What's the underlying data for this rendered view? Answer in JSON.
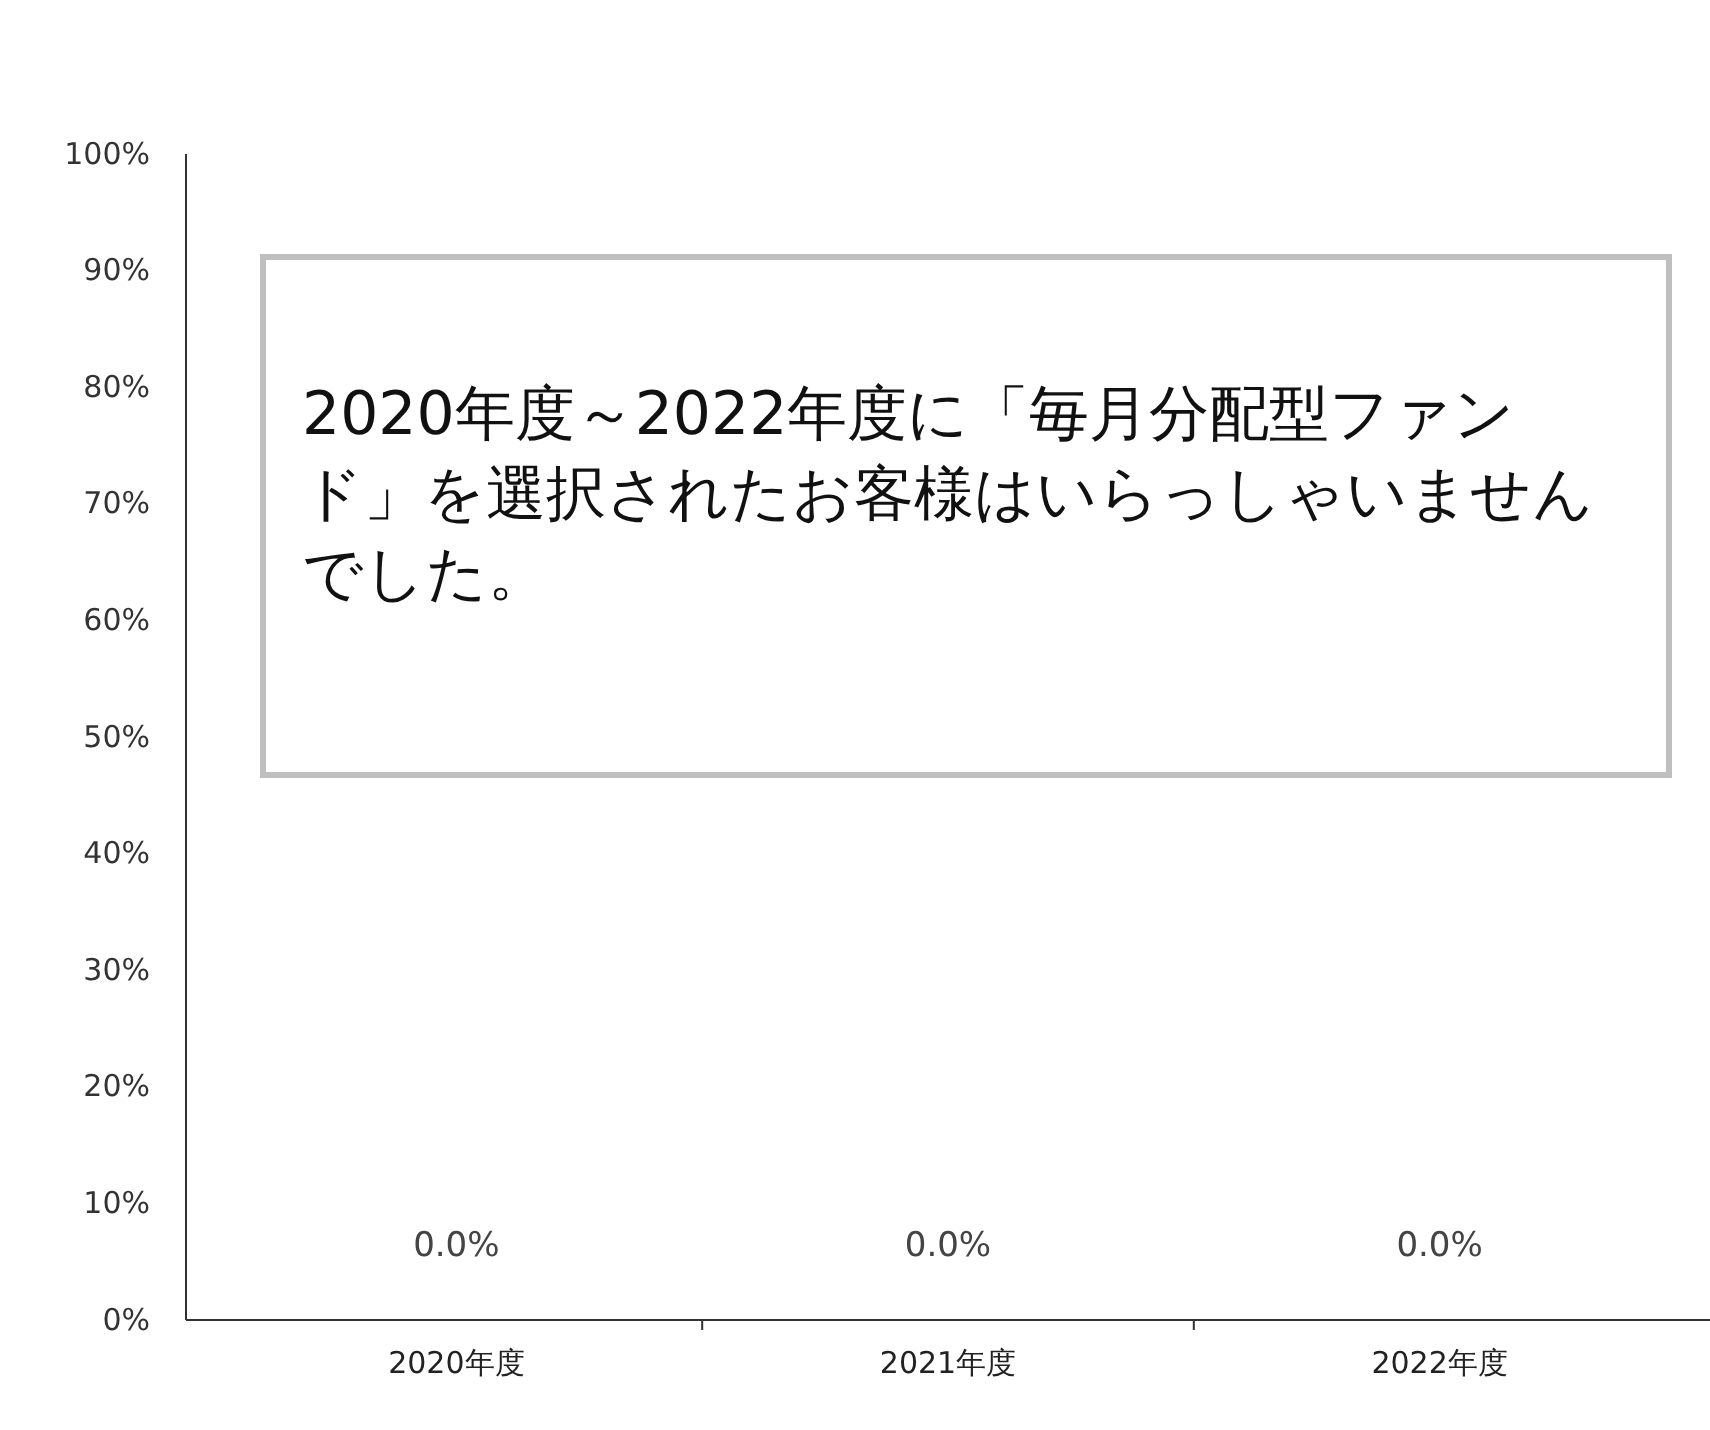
{
  "chart_data": {
    "type": "bar",
    "categories": [
      "2020年度",
      "2021年度",
      "2022年度"
    ],
    "values": [
      0,
      0,
      0
    ],
    "value_labels": [
      "0.0%",
      "0.0%",
      "0.0%"
    ],
    "ylim": [
      0,
      100
    ],
    "yticks": [
      {
        "value": 0,
        "label": "0%"
      },
      {
        "value": 10,
        "label": "10%"
      },
      {
        "value": 20,
        "label": "20%"
      },
      {
        "value": 30,
        "label": "30%"
      },
      {
        "value": 40,
        "label": "40%"
      },
      {
        "value": 50,
        "label": "50%"
      },
      {
        "value": 60,
        "label": "60%"
      },
      {
        "value": 70,
        "label": "70%"
      },
      {
        "value": 80,
        "label": "80%"
      },
      {
        "value": 90,
        "label": "90%"
      },
      {
        "value": 100,
        "label": "100%"
      }
    ],
    "annotations": [
      "2020年度～2022年度に「毎月分配型ファンド」を選択されたお客様はいらっしゃいませんでした。"
    ],
    "grid": false
  }
}
